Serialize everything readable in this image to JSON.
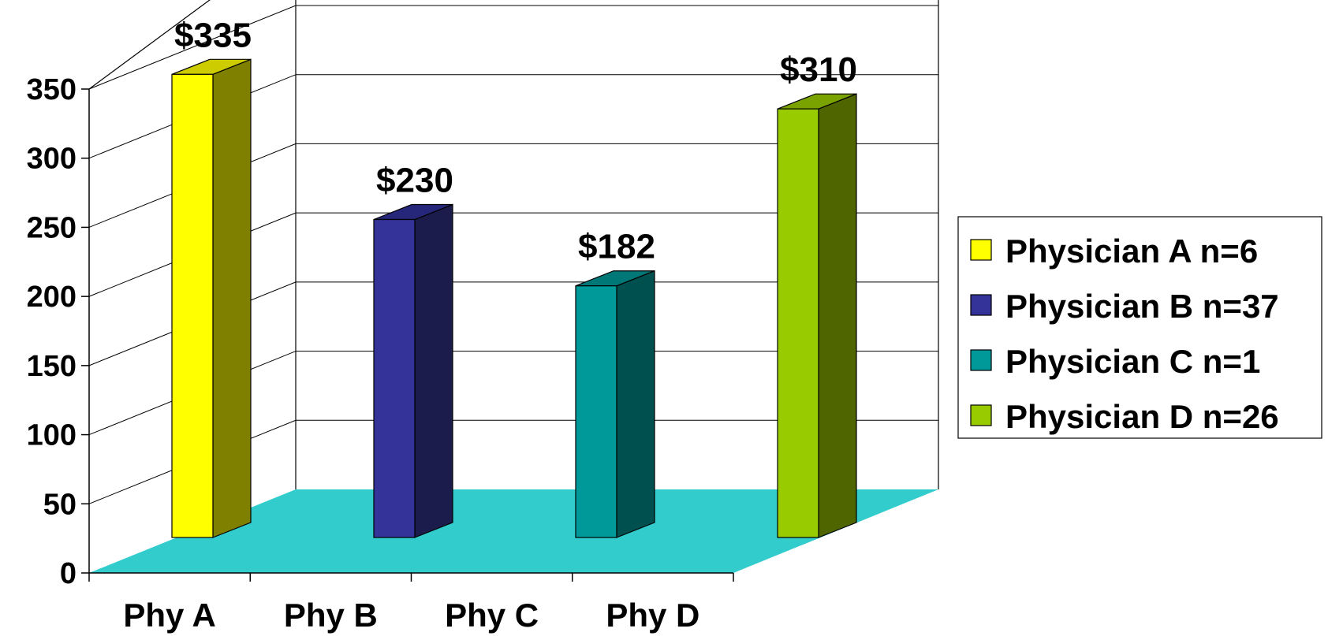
{
  "chart_data": {
    "type": "bar",
    "style": "3d-column",
    "categories": [
      "Phy A",
      "Phy B",
      "Phy C",
      "Phy D"
    ],
    "values": [
      335,
      230,
      182,
      310
    ],
    "data_labels": [
      "$335",
      "$230",
      "$182",
      "$310"
    ],
    "y_ticks": [
      "0",
      "50",
      "100",
      "150",
      "200",
      "250",
      "300",
      "350"
    ],
    "ylim": [
      0,
      350
    ],
    "grid": true,
    "legend_position": "right",
    "legend": [
      {
        "label": "Physician A n=6",
        "color": "#FFFF00"
      },
      {
        "label": "Physician B n=37",
        "color": "#333399"
      },
      {
        "label": "Physician C n=1",
        "color": "#009999"
      },
      {
        "label": "Physician D n=26",
        "color": "#99CC00"
      }
    ],
    "colors": {
      "front": [
        "#FFFF00",
        "#333399",
        "#009999",
        "#99CC00"
      ],
      "side": [
        "#808000",
        "#1C1C4C",
        "#005050",
        "#4F6600"
      ],
      "top": [
        "#CCCC00",
        "#26267A",
        "#007878",
        "#7AA300"
      ],
      "floor": "#33CCCC"
    }
  }
}
